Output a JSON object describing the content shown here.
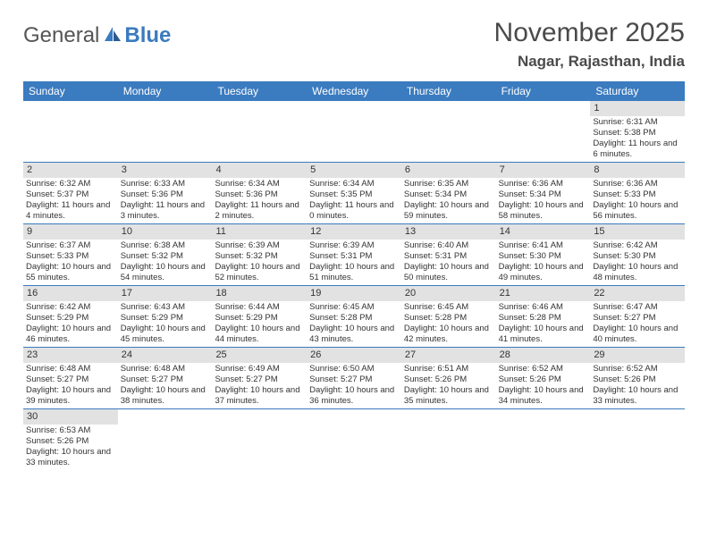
{
  "logo": {
    "part1": "General",
    "part2": "Blue"
  },
  "title": "November 2025",
  "location": "Nagar, Rajasthan, India",
  "colors": {
    "header_bg": "#3b7bbf",
    "header_text": "#ffffff",
    "daynum_bg": "#e2e2e2",
    "border": "#3b7bbf",
    "text": "#333333"
  },
  "day_headers": [
    "Sunday",
    "Monday",
    "Tuesday",
    "Wednesday",
    "Thursday",
    "Friday",
    "Saturday"
  ],
  "weeks": [
    [
      null,
      null,
      null,
      null,
      null,
      null,
      {
        "num": "1",
        "sunrise": "Sunrise: 6:31 AM",
        "sunset": "Sunset: 5:38 PM",
        "daylight": "Daylight: 11 hours and 6 minutes."
      }
    ],
    [
      {
        "num": "2",
        "sunrise": "Sunrise: 6:32 AM",
        "sunset": "Sunset: 5:37 PM",
        "daylight": "Daylight: 11 hours and 4 minutes."
      },
      {
        "num": "3",
        "sunrise": "Sunrise: 6:33 AM",
        "sunset": "Sunset: 5:36 PM",
        "daylight": "Daylight: 11 hours and 3 minutes."
      },
      {
        "num": "4",
        "sunrise": "Sunrise: 6:34 AM",
        "sunset": "Sunset: 5:36 PM",
        "daylight": "Daylight: 11 hours and 2 minutes."
      },
      {
        "num": "5",
        "sunrise": "Sunrise: 6:34 AM",
        "sunset": "Sunset: 5:35 PM",
        "daylight": "Daylight: 11 hours and 0 minutes."
      },
      {
        "num": "6",
        "sunrise": "Sunrise: 6:35 AM",
        "sunset": "Sunset: 5:34 PM",
        "daylight": "Daylight: 10 hours and 59 minutes."
      },
      {
        "num": "7",
        "sunrise": "Sunrise: 6:36 AM",
        "sunset": "Sunset: 5:34 PM",
        "daylight": "Daylight: 10 hours and 58 minutes."
      },
      {
        "num": "8",
        "sunrise": "Sunrise: 6:36 AM",
        "sunset": "Sunset: 5:33 PM",
        "daylight": "Daylight: 10 hours and 56 minutes."
      }
    ],
    [
      {
        "num": "9",
        "sunrise": "Sunrise: 6:37 AM",
        "sunset": "Sunset: 5:33 PM",
        "daylight": "Daylight: 10 hours and 55 minutes."
      },
      {
        "num": "10",
        "sunrise": "Sunrise: 6:38 AM",
        "sunset": "Sunset: 5:32 PM",
        "daylight": "Daylight: 10 hours and 54 minutes."
      },
      {
        "num": "11",
        "sunrise": "Sunrise: 6:39 AM",
        "sunset": "Sunset: 5:32 PM",
        "daylight": "Daylight: 10 hours and 52 minutes."
      },
      {
        "num": "12",
        "sunrise": "Sunrise: 6:39 AM",
        "sunset": "Sunset: 5:31 PM",
        "daylight": "Daylight: 10 hours and 51 minutes."
      },
      {
        "num": "13",
        "sunrise": "Sunrise: 6:40 AM",
        "sunset": "Sunset: 5:31 PM",
        "daylight": "Daylight: 10 hours and 50 minutes."
      },
      {
        "num": "14",
        "sunrise": "Sunrise: 6:41 AM",
        "sunset": "Sunset: 5:30 PM",
        "daylight": "Daylight: 10 hours and 49 minutes."
      },
      {
        "num": "15",
        "sunrise": "Sunrise: 6:42 AM",
        "sunset": "Sunset: 5:30 PM",
        "daylight": "Daylight: 10 hours and 48 minutes."
      }
    ],
    [
      {
        "num": "16",
        "sunrise": "Sunrise: 6:42 AM",
        "sunset": "Sunset: 5:29 PM",
        "daylight": "Daylight: 10 hours and 46 minutes."
      },
      {
        "num": "17",
        "sunrise": "Sunrise: 6:43 AM",
        "sunset": "Sunset: 5:29 PM",
        "daylight": "Daylight: 10 hours and 45 minutes."
      },
      {
        "num": "18",
        "sunrise": "Sunrise: 6:44 AM",
        "sunset": "Sunset: 5:29 PM",
        "daylight": "Daylight: 10 hours and 44 minutes."
      },
      {
        "num": "19",
        "sunrise": "Sunrise: 6:45 AM",
        "sunset": "Sunset: 5:28 PM",
        "daylight": "Daylight: 10 hours and 43 minutes."
      },
      {
        "num": "20",
        "sunrise": "Sunrise: 6:45 AM",
        "sunset": "Sunset: 5:28 PM",
        "daylight": "Daylight: 10 hours and 42 minutes."
      },
      {
        "num": "21",
        "sunrise": "Sunrise: 6:46 AM",
        "sunset": "Sunset: 5:28 PM",
        "daylight": "Daylight: 10 hours and 41 minutes."
      },
      {
        "num": "22",
        "sunrise": "Sunrise: 6:47 AM",
        "sunset": "Sunset: 5:27 PM",
        "daylight": "Daylight: 10 hours and 40 minutes."
      }
    ],
    [
      {
        "num": "23",
        "sunrise": "Sunrise: 6:48 AM",
        "sunset": "Sunset: 5:27 PM",
        "daylight": "Daylight: 10 hours and 39 minutes."
      },
      {
        "num": "24",
        "sunrise": "Sunrise: 6:48 AM",
        "sunset": "Sunset: 5:27 PM",
        "daylight": "Daylight: 10 hours and 38 minutes."
      },
      {
        "num": "25",
        "sunrise": "Sunrise: 6:49 AM",
        "sunset": "Sunset: 5:27 PM",
        "daylight": "Daylight: 10 hours and 37 minutes."
      },
      {
        "num": "26",
        "sunrise": "Sunrise: 6:50 AM",
        "sunset": "Sunset: 5:27 PM",
        "daylight": "Daylight: 10 hours and 36 minutes."
      },
      {
        "num": "27",
        "sunrise": "Sunrise: 6:51 AM",
        "sunset": "Sunset: 5:26 PM",
        "daylight": "Daylight: 10 hours and 35 minutes."
      },
      {
        "num": "28",
        "sunrise": "Sunrise: 6:52 AM",
        "sunset": "Sunset: 5:26 PM",
        "daylight": "Daylight: 10 hours and 34 minutes."
      },
      {
        "num": "29",
        "sunrise": "Sunrise: 6:52 AM",
        "sunset": "Sunset: 5:26 PM",
        "daylight": "Daylight: 10 hours and 33 minutes."
      }
    ],
    [
      {
        "num": "30",
        "sunrise": "Sunrise: 6:53 AM",
        "sunset": "Sunset: 5:26 PM",
        "daylight": "Daylight: 10 hours and 33 minutes."
      },
      null,
      null,
      null,
      null,
      null,
      null
    ]
  ]
}
